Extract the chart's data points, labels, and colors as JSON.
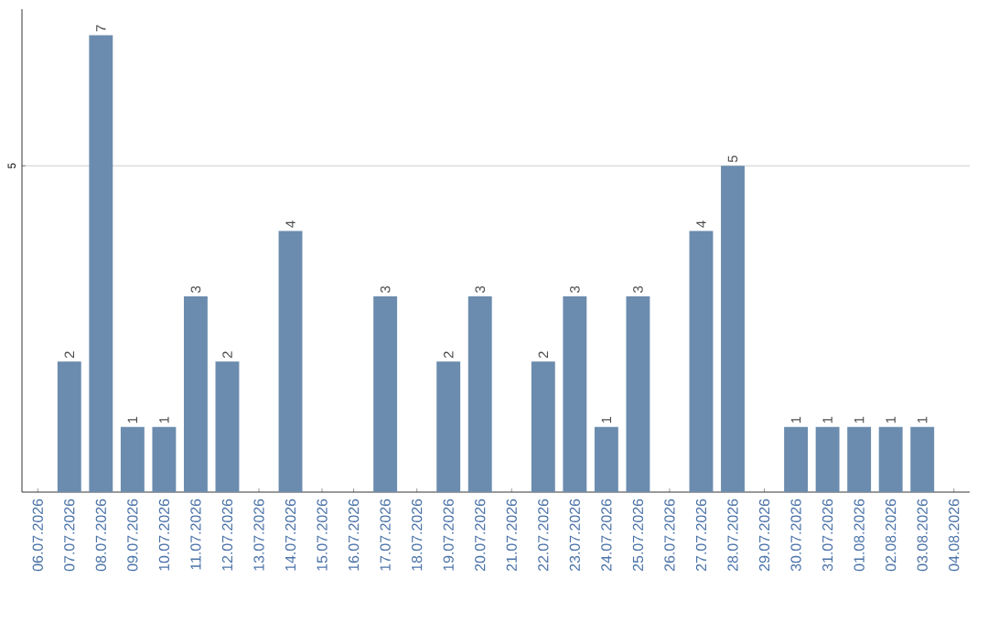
{
  "chart_data": {
    "type": "bar",
    "categories": [
      "06.07.2026",
      "07.07.2026",
      "08.07.2026",
      "09.07.2026",
      "10.07.2026",
      "11.07.2026",
      "12.07.2026",
      "13.07.2026",
      "14.07.2026",
      "15.07.2026",
      "16.07.2026",
      "17.07.2026",
      "18.07.2026",
      "19.07.2026",
      "20.07.2026",
      "21.07.2026",
      "22.07.2026",
      "23.07.2026",
      "24.07.2026",
      "25.07.2026",
      "26.07.2026",
      "27.07.2026",
      "28.07.2026",
      "29.07.2026",
      "30.07.2026",
      "31.07.2026",
      "01.08.2026",
      "02.08.2026",
      "03.08.2026",
      "04.08.2026"
    ],
    "values": [
      0,
      2,
      7,
      1,
      1,
      3,
      2,
      0,
      4,
      0,
      0,
      3,
      0,
      2,
      3,
      0,
      2,
      3,
      1,
      3,
      0,
      4,
      5,
      0,
      1,
      1,
      1,
      1,
      1,
      0
    ],
    "value_labels": [
      null,
      "2",
      "7",
      "1",
      "1",
      "3",
      "2",
      null,
      "4",
      null,
      null,
      "3",
      null,
      "2",
      "3",
      null,
      "2",
      "3",
      "1",
      "3",
      null,
      "4",
      "5",
      null,
      "1",
      "1",
      "1",
      "1",
      "1",
      null
    ],
    "color": "#6b8cae",
    "ylim": [
      0,
      7.4
    ],
    "yticks": [
      5
    ],
    "grid": "y"
  }
}
